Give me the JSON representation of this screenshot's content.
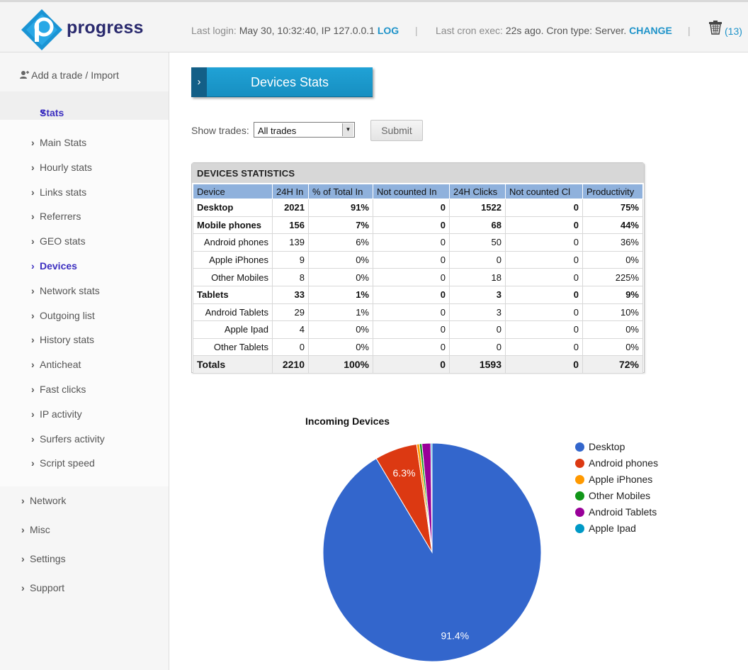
{
  "header": {
    "brand": "progress",
    "last_login_label": "Last login:",
    "last_login_value": "May 30, 10:32:40, IP 127.0.0.1",
    "log_link": "LOG",
    "last_cron_label": "Last cron exec:",
    "last_cron_value": "22s ago. Cron type: Server.",
    "change_link": "CHANGE",
    "trash_count_open": "(",
    "trash_count": "13",
    "trash_count_close": ")"
  },
  "sidebar": {
    "add_trade": "Add a trade",
    "add_trade_sep": "/",
    "import": "Import",
    "stats_label": "Stats",
    "stats_items": [
      {
        "label": "Main Stats"
      },
      {
        "label": "Hourly stats"
      },
      {
        "label": "Links stats"
      },
      {
        "label": "Referrers"
      },
      {
        "label": "GEO stats"
      },
      {
        "label": "Devices"
      },
      {
        "label": "Network stats"
      },
      {
        "label": "Outgoing list"
      },
      {
        "label": "History stats"
      },
      {
        "label": "Anticheat"
      },
      {
        "label": "Fast clicks"
      },
      {
        "label": "IP activity"
      },
      {
        "label": "Surfers activity"
      },
      {
        "label": "Script speed"
      }
    ],
    "active_item": "Devices",
    "main_items": [
      {
        "label": "Network"
      },
      {
        "label": "Misc"
      },
      {
        "label": "Settings"
      },
      {
        "label": "Support"
      }
    ]
  },
  "page": {
    "title_chevron": "›",
    "title": "Devices Stats",
    "show_trades_label": "Show trades:",
    "trades_selected": "All trades",
    "submit_label": "Submit"
  },
  "table": {
    "title": "DEVICES STATISTICS",
    "columns": [
      "Device",
      "24H In",
      "% of Total In",
      "Not counted In",
      "24H Clicks",
      "Not counted Cl",
      "Productivity"
    ],
    "rows": [
      {
        "device": "Desktop",
        "in": "2021",
        "pct": "91%",
        "nc_in": "0",
        "clicks": "1522",
        "nc_cl": "0",
        "prod": "75%",
        "level": "top"
      },
      {
        "device": "Mobile phones",
        "in": "156",
        "pct": "7%",
        "nc_in": "0",
        "clicks": "68",
        "nc_cl": "0",
        "prod": "44%",
        "level": "top"
      },
      {
        "device": "Android phones",
        "in": "139",
        "pct": "6%",
        "nc_in": "0",
        "clicks": "50",
        "nc_cl": "0",
        "prod": "36%",
        "level": "sub"
      },
      {
        "device": "Apple iPhones",
        "in": "9",
        "pct": "0%",
        "nc_in": "0",
        "clicks": "0",
        "nc_cl": "0",
        "prod": "0%",
        "level": "sub"
      },
      {
        "device": "Other Mobiles",
        "in": "8",
        "pct": "0%",
        "nc_in": "0",
        "clicks": "18",
        "nc_cl": "0",
        "prod": "225%",
        "level": "sub"
      },
      {
        "device": "Tablets",
        "in": "33",
        "pct": "1%",
        "nc_in": "0",
        "clicks": "3",
        "nc_cl": "0",
        "prod": "9%",
        "level": "top"
      },
      {
        "device": "Android Tablets",
        "in": "29",
        "pct": "1%",
        "nc_in": "0",
        "clicks": "3",
        "nc_cl": "0",
        "prod": "10%",
        "level": "sub"
      },
      {
        "device": "Apple Ipad",
        "in": "4",
        "pct": "0%",
        "nc_in": "0",
        "clicks": "0",
        "nc_cl": "0",
        "prod": "0%",
        "level": "sub"
      },
      {
        "device": "Other Tablets",
        "in": "0",
        "pct": "0%",
        "nc_in": "0",
        "clicks": "0",
        "nc_cl": "0",
        "prod": "0%",
        "level": "sub"
      }
    ],
    "totals": {
      "device": "Totals",
      "in": "2210",
      "pct": "100%",
      "nc_in": "0",
      "clicks": "1593",
      "nc_cl": "0",
      "prod": "72%"
    }
  },
  "chart_data": {
    "type": "pie",
    "title": "Incoming Devices",
    "categories": [
      "Desktop",
      "Android phones",
      "Apple iPhones",
      "Other Mobiles",
      "Android Tablets",
      "Apple Ipad"
    ],
    "values": [
      2021,
      139,
      9,
      8,
      29,
      4
    ],
    "slice_labels": [
      "91.4%",
      "6.3%",
      "",
      "",
      "",
      ""
    ],
    "colors": [
      "#3366cc",
      "#dc3912",
      "#ff9900",
      "#109618",
      "#990099",
      "#0099c6"
    ],
    "legend_position": "right"
  }
}
